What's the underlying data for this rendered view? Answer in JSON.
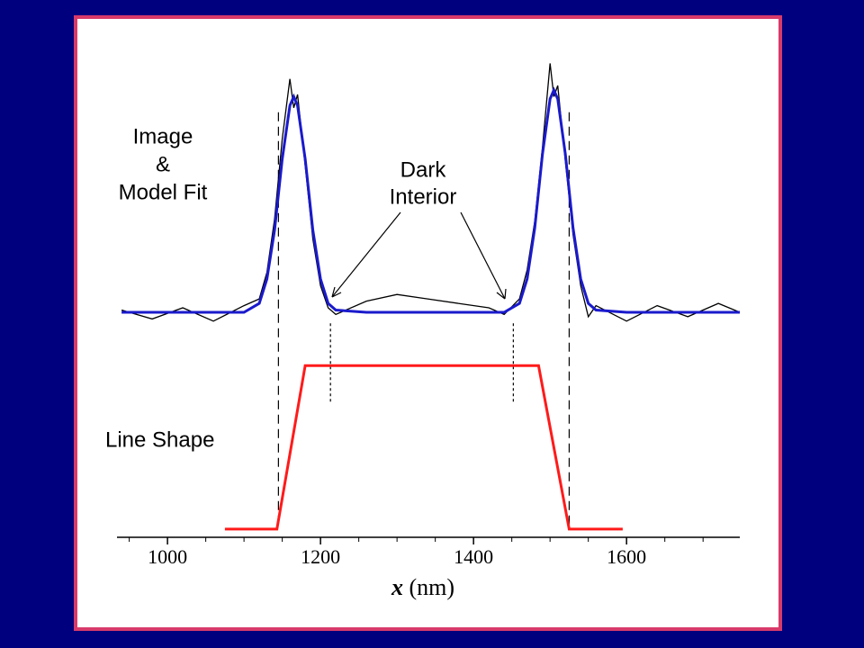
{
  "chart_data": [
    {
      "type": "line",
      "legend_joiner": "&",
      "annotation_lines": [
        "Dark",
        "Interior"
      ],
      "xlim": [
        934,
        1748
      ],
      "ylim": [
        -0.15,
        1.15
      ],
      "x": [
        940,
        980,
        1020,
        1060,
        1100,
        1120,
        1130,
        1140,
        1150,
        1160,
        1165,
        1170,
        1180,
        1190,
        1200,
        1210,
        1220,
        1260,
        1300,
        1340,
        1380,
        1420,
        1440,
        1460,
        1470,
        1480,
        1490,
        1500,
        1505,
        1510,
        1520,
        1530,
        1540,
        1550,
        1560,
        1600,
        1640,
        1680,
        1720,
        1748
      ],
      "series": [
        {
          "name": "Image",
          "color": "#000000",
          "values": [
            0.01,
            -0.03,
            0.02,
            -0.04,
            0.03,
            0.06,
            0.18,
            0.42,
            0.78,
            1.05,
            0.92,
            0.98,
            0.66,
            0.33,
            0.12,
            0.02,
            -0.01,
            0.05,
            0.08,
            0.06,
            0.04,
            0.02,
            -0.01,
            0.06,
            0.19,
            0.41,
            0.74,
            1.12,
            0.97,
            1.02,
            0.68,
            0.35,
            0.12,
            -0.02,
            0.03,
            -0.04,
            0.03,
            -0.02,
            0.04,
            0.0
          ]
        },
        {
          "name": "Model Fit",
          "color": "#1a1acc",
          "values": [
            0,
            0,
            0,
            0,
            0,
            0.04,
            0.15,
            0.37,
            0.69,
            0.93,
            0.97,
            0.93,
            0.69,
            0.37,
            0.15,
            0.04,
            0.01,
            0,
            0,
            0,
            0,
            0,
            0,
            0.04,
            0.15,
            0.38,
            0.71,
            0.96,
            1.0,
            0.96,
            0.71,
            0.38,
            0.15,
            0.04,
            0.01,
            0,
            0,
            0,
            0,
            0
          ]
        }
      ],
      "markers": [
        {
          "x": 1145,
          "style": "dashed"
        },
        {
          "x": 1213,
          "style": "dotted"
        },
        {
          "x": 1452,
          "style": "dotted"
        },
        {
          "x": 1525,
          "style": "dashed"
        }
      ]
    },
    {
      "type": "line",
      "xlim": [
        934,
        1748
      ],
      "ylim": [
        -0.05,
        1.2
      ],
      "xticks": [
        1000,
        1200,
        1400,
        1600
      ],
      "xminorticks": [
        950,
        1050,
        1100,
        1150,
        1250,
        1300,
        1350,
        1450,
        1500,
        1550,
        1650,
        1700
      ],
      "xlabel_var": "x",
      "xlabel_unit": "(nm)",
      "x": [
        1075,
        1143,
        1180,
        1485,
        1525,
        1595
      ],
      "series": [
        {
          "name": "Line Shape",
          "color": "#ff1a1a",
          "values": [
            0,
            0,
            1,
            1,
            0,
            0
          ]
        }
      ]
    }
  ]
}
